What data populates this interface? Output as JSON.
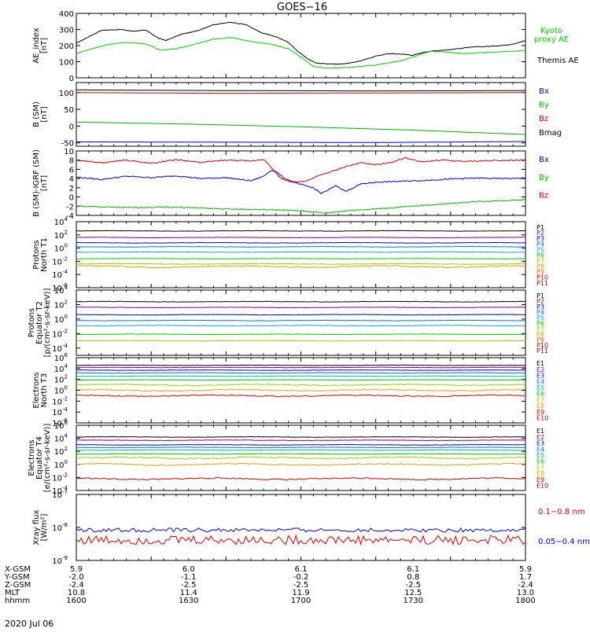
{
  "title": "GOES−16",
  "date_label": "2020 Jul 06",
  "footer": {
    "row_labels": [
      "X-GSM",
      "Y-GSM",
      "Z-GSM",
      "MLT",
      "hhmm"
    ],
    "columns": [
      [
        "5.9",
        "-2.0",
        "-2.4",
        "10.8",
        "1600"
      ],
      [
        "6.0",
        "-1.1",
        "-2.5",
        "11.4",
        "1630"
      ],
      [
        "6.1",
        "-0.2",
        "-2.5",
        "11.9",
        "1700"
      ],
      [
        "6.1",
        "0.8",
        "-2.5",
        "12.5",
        "1730"
      ],
      [
        "5.9",
        "1.7",
        "-2.4",
        "13.0",
        "1800"
      ]
    ]
  },
  "chart_data": [
    {
      "type": "line",
      "panel": "ae",
      "ylabel": [
        "AE_index",
        "[nT]"
      ],
      "ylim": [
        0,
        400
      ],
      "yticks": [
        0,
        100,
        200,
        300,
        400
      ],
      "x": [
        "1600",
        "1630",
        "1700",
        "1730",
        "1800"
      ],
      "series": [
        {
          "name": "Themis AE",
          "color": "#000000",
          "values": [
            [
              0,
              215
            ],
            [
              5,
              255
            ],
            [
              10,
              295
            ],
            [
              18,
              300
            ],
            [
              22,
              290
            ],
            [
              28,
              295
            ],
            [
              33,
              245
            ],
            [
              36,
              232
            ],
            [
              42,
              270
            ],
            [
              48,
              290
            ],
            [
              55,
              330
            ],
            [
              62,
              345
            ],
            [
              68,
              330
            ],
            [
              74,
              280
            ],
            [
              80,
              255
            ],
            [
              85,
              220
            ],
            [
              88,
              175
            ],
            [
              92,
              125
            ],
            [
              96,
              92
            ],
            [
              100,
              88
            ],
            [
              105,
              85
            ],
            [
              110,
              92
            ],
            [
              115,
              110
            ],
            [
              120,
              135
            ],
            [
              125,
              150
            ],
            [
              130,
              148
            ],
            [
              135,
              140
            ],
            [
              140,
              162
            ],
            [
              145,
              170
            ],
            [
              150,
              175
            ],
            [
              155,
              185
            ],
            [
              160,
              192
            ],
            [
              165,
              195
            ],
            [
              170,
              200
            ],
            [
              175,
              210
            ],
            [
              180,
              230
            ]
          ]
        },
        {
          "name": "Kyoto\nproxy AE",
          "color": "#00d000",
          "values": [
            [
              0,
              150
            ],
            [
              5,
              175
            ],
            [
              12,
              205
            ],
            [
              20,
              220
            ],
            [
              28,
              210
            ],
            [
              34,
              170
            ],
            [
              40,
              180
            ],
            [
              48,
              210
            ],
            [
              55,
              240
            ],
            [
              62,
              250
            ],
            [
              70,
              225
            ],
            [
              78,
              210
            ],
            [
              85,
              180
            ],
            [
              90,
              130
            ],
            [
              95,
              70
            ],
            [
              100,
              60
            ],
            [
              110,
              65
            ],
            [
              120,
              80
            ],
            [
              130,
              105
            ],
            [
              137,
              140
            ],
            [
              142,
              165
            ],
            [
              148,
              160
            ],
            [
              155,
              150
            ],
            [
              165,
              158
            ],
            [
              175,
              165
            ],
            [
              180,
              170
            ]
          ]
        }
      ]
    },
    {
      "type": "line",
      "panel": "bsm",
      "ylabel": [
        "B (SM)",
        "[nT]"
      ],
      "ylim": [
        -60,
        130
      ],
      "yticks": [
        -50,
        0,
        50,
        100
      ],
      "series": [
        {
          "name": "Bx",
          "color": "#0000c8",
          "values": [
            [
              0,
              -47
            ],
            [
              60,
              -48
            ],
            [
              120,
              -49
            ],
            [
              180,
              -46
            ]
          ]
        },
        {
          "name": "By",
          "color": "#00b400",
          "values": [
            [
              0,
              12
            ],
            [
              45,
              6
            ],
            [
              90,
              -2
            ],
            [
              135,
              -12
            ],
            [
              180,
              -25
            ]
          ]
        },
        {
          "name": "Bz",
          "color": "#d00000",
          "values": [
            [
              0,
              100
            ],
            [
              60,
              98
            ],
            [
              120,
              99
            ],
            [
              180,
              100
            ]
          ]
        },
        {
          "name": "Bmag",
          "color": "#000000",
          "values": [
            [
              0,
              108
            ],
            [
              60,
              106
            ],
            [
              120,
              105
            ],
            [
              180,
              106
            ]
          ]
        }
      ]
    },
    {
      "type": "line",
      "panel": "bigrf",
      "ylabel": [
        "B (SM)-IGRF (SM)",
        "[nT]"
      ],
      "ylim": [
        -4,
        10
      ],
      "yticks": [
        -4,
        -2,
        0,
        2,
        4,
        6,
        8,
        10
      ],
      "series": [
        {
          "name": "Bx",
          "color": "#0000c8",
          "values": [
            [
              0,
              4.3
            ],
            [
              10,
              3.8
            ],
            [
              20,
              4.5
            ],
            [
              30,
              4.2
            ],
            [
              40,
              4.6
            ],
            [
              50,
              4.0
            ],
            [
              60,
              4.2
            ],
            [
              70,
              3.5
            ],
            [
              75,
              4.5
            ],
            [
              78,
              5.8
            ],
            [
              80,
              5.5
            ],
            [
              83,
              4.2
            ],
            [
              88,
              3.0
            ],
            [
              95,
              2.0
            ],
            [
              98,
              0.8
            ],
            [
              100,
              1.2
            ],
            [
              104,
              2.5
            ],
            [
              108,
              1.2
            ],
            [
              114,
              2.8
            ],
            [
              120,
              3.2
            ],
            [
              130,
              3.4
            ],
            [
              140,
              3.6
            ],
            [
              150,
              3.9
            ],
            [
              160,
              4.1
            ],
            [
              170,
              4.0
            ],
            [
              180,
              4.1
            ]
          ]
        },
        {
          "name": "By",
          "color": "#00b400",
          "values": [
            [
              0,
              -2.0
            ],
            [
              20,
              -2.3
            ],
            [
              40,
              -2.2
            ],
            [
              60,
              -2.6
            ],
            [
              80,
              -2.8
            ],
            [
              90,
              -3.0
            ],
            [
              100,
              -3.5
            ],
            [
              110,
              -2.9
            ],
            [
              120,
              -2.6
            ],
            [
              140,
              -1.8
            ],
            [
              160,
              -1.0
            ],
            [
              180,
              -0.6
            ]
          ]
        },
        {
          "name": "Bz",
          "color": "#d00000",
          "values": [
            [
              0,
              8.0
            ],
            [
              10,
              7.4
            ],
            [
              20,
              8.0
            ],
            [
              30,
              7.3
            ],
            [
              40,
              8.1
            ],
            [
              50,
              7.5
            ],
            [
              60,
              8.0
            ],
            [
              70,
              7.8
            ],
            [
              75,
              8.2
            ],
            [
              78,
              6.5
            ],
            [
              82,
              4.0
            ],
            [
              86,
              3.3
            ],
            [
              92,
              3.4
            ],
            [
              98,
              4.8
            ],
            [
              104,
              5.8
            ],
            [
              108,
              6.6
            ],
            [
              114,
              7.4
            ],
            [
              120,
              7.0
            ],
            [
              126,
              7.5
            ],
            [
              132,
              8.5
            ],
            [
              138,
              7.6
            ],
            [
              146,
              8.0
            ],
            [
              156,
              7.7
            ],
            [
              166,
              7.9
            ],
            [
              176,
              8.0
            ],
            [
              180,
              7.9
            ]
          ]
        }
      ]
    },
    {
      "type": "line",
      "panel": "prot_n",
      "ylabel": [
        "Protons",
        "North T1"
      ],
      "log10_ylim": [
        -6,
        4
      ],
      "ytick_exponents": [
        -6,
        -4,
        -2,
        0,
        2,
        4
      ],
      "channels": [
        {
          "name": "P1",
          "color": "#000000",
          "level": 2.6
        },
        {
          "name": "P2",
          "color": "#800080",
          "level": 1.6
        },
        {
          "name": "P3",
          "color": "#0000c8",
          "level": 0.8
        },
        {
          "name": "P4",
          "color": "#0070ff",
          "level": 0.2
        },
        {
          "name": "P5",
          "color": "#00b0c8",
          "level": -0.6
        },
        {
          "name": "P6",
          "color": "#00c800",
          "level": -1.6
        },
        {
          "name": "P7",
          "color": "#a0c800",
          "level": -2.4
        },
        {
          "name": "P8",
          "color": "#e0a000",
          "level": -2.8
        },
        {
          "name": "P9",
          "color": "#ff6000",
          "level": null
        },
        {
          "name": "P10",
          "color": "#d00000",
          "level": null
        },
        {
          "name": "P11",
          "color": "#a00000",
          "level": null
        }
      ]
    },
    {
      "type": "line",
      "panel": "prot_e",
      "ylabel": [
        "Protons",
        "Equator T2",
        "[p/(cm²-s-sr-keV)]"
      ],
      "log10_ylim": [
        -5,
        4
      ],
      "ytick_exponents": [
        -4,
        -2,
        0,
        2,
        4
      ],
      "channels": [
        {
          "name": "P1",
          "color": "#000000",
          "level": 2.4
        },
        {
          "name": "P2",
          "color": "#800080",
          "level": 1.6
        },
        {
          "name": "P3",
          "color": "#0000c8",
          "level": 0.6
        },
        {
          "name": "P4",
          "color": "#0070ff",
          "level": -0.2
        },
        {
          "name": "P5",
          "color": "#00b0c8",
          "level": -0.9
        },
        {
          "name": "P6",
          "color": "#00c800",
          "level": -2.1
        },
        {
          "name": "P7",
          "color": "#a0c800",
          "level": -3.0
        },
        {
          "name": "P8",
          "color": "#e0a000",
          "level": null
        },
        {
          "name": "P9",
          "color": "#ff6000",
          "level": null
        },
        {
          "name": "P10",
          "color": "#d00000",
          "level": null
        },
        {
          "name": "P11",
          "color": "#a00000",
          "level": null
        }
      ]
    },
    {
      "type": "line",
      "panel": "elec_n",
      "ylabel": [
        "Electrons",
        "North T3"
      ],
      "log10_ylim": [
        -6,
        6
      ],
      "ytick_exponents": [
        -6,
        -4,
        -2,
        0,
        2,
        4,
        6
      ],
      "channels": [
        {
          "name": "E1",
          "color": "#000000",
          "level": 4.6
        },
        {
          "name": "E2",
          "color": "#800080",
          "level": 4.2
        },
        {
          "name": "E3",
          "color": "#0000c8",
          "level": 3.7
        },
        {
          "name": "E4",
          "color": "#0070ff",
          "level": 3.2
        },
        {
          "name": "E5",
          "color": "#00b0c8",
          "level": 2.6
        },
        {
          "name": "E6",
          "color": "#00c800",
          "level": 1.9
        },
        {
          "name": "E7",
          "color": "#a0c800",
          "level": 1.0
        },
        {
          "name": "E8",
          "color": "#e0a000",
          "level": 0.0
        },
        {
          "name": "E9",
          "color": "#d00000",
          "level": -1.0
        },
        {
          "name": "E10",
          "color": "#a00000",
          "level": null
        }
      ]
    },
    {
      "type": "line",
      "panel": "elec_e",
      "ylabel": [
        "Electrons",
        "Equator T4",
        "[e/(cm²-s-sr-keV)]"
      ],
      "log10_ylim": [
        -4,
        6
      ],
      "ytick_exponents": [
        -4,
        -2,
        0,
        2,
        4,
        6
      ],
      "channels": [
        {
          "name": "E1",
          "color": "#000000",
          "level": 4.2
        },
        {
          "name": "E2",
          "color": "#800080",
          "level": 3.7
        },
        {
          "name": "E3",
          "color": "#0000c8",
          "level": 3.0
        },
        {
          "name": "E4",
          "color": "#0070ff",
          "level": 2.6
        },
        {
          "name": "E5",
          "color": "#00b0c8",
          "level": 2.2
        },
        {
          "name": "E6",
          "color": "#00c800",
          "level": 1.6
        },
        {
          "name": "E7",
          "color": "#a0c800",
          "level": 1.0
        },
        {
          "name": "E8",
          "color": "#e0a000",
          "level": 0.0
        },
        {
          "name": "E9",
          "color": "#d00000",
          "level": -2.2
        },
        {
          "name": "E10",
          "color": "#a00000",
          "level": null
        }
      ]
    },
    {
      "type": "line",
      "panel": "xray",
      "ylabel": [
        "Xray flux",
        "[W/m²]"
      ],
      "log10_ylim": [
        -9,
        -7
      ],
      "ytick_exponents": [
        -9,
        -8,
        -7
      ],
      "series": [
        {
          "name": "0.1−0.8 nm",
          "color": "#d00000",
          "level": -8.38
        },
        {
          "name": "0.05−0.4 nm",
          "color": "#0000c8",
          "level": -8.08
        }
      ]
    }
  ]
}
